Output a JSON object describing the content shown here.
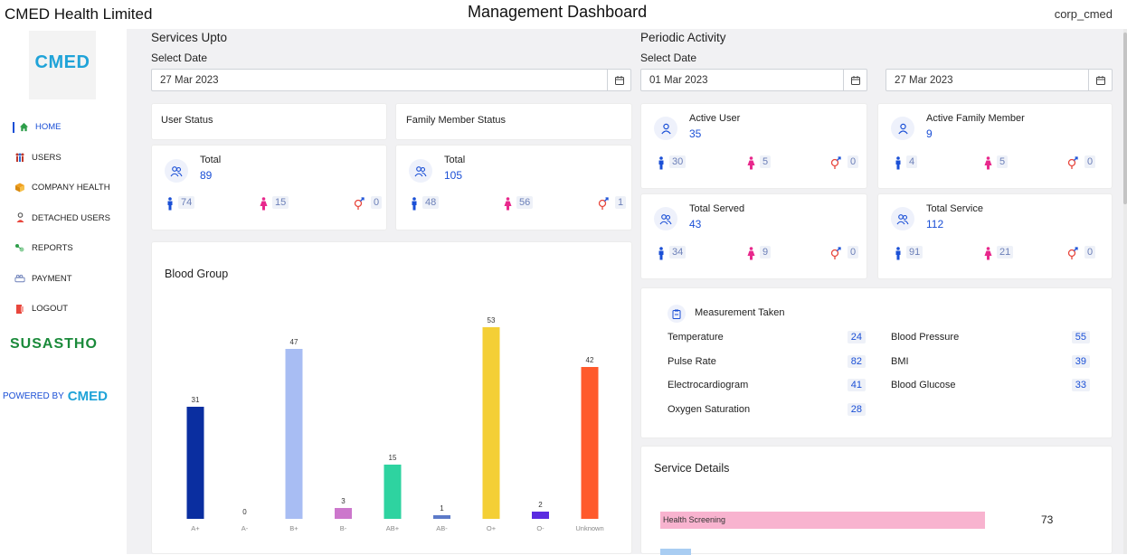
{
  "header": {
    "company": "CMED Health Limited",
    "title": "Management Dashboard",
    "user": "corp_cmed"
  },
  "sidebar": {
    "logo": "CMED",
    "items": [
      {
        "label": "HOME",
        "icon": "home-icon",
        "active": true
      },
      {
        "label": "USERS",
        "icon": "users-icon"
      },
      {
        "label": "COMPANY HEALTH",
        "icon": "company-health-icon"
      },
      {
        "label": "DETACHED USERS",
        "icon": "detached-user-icon"
      },
      {
        "label": "REPORTS",
        "icon": "reports-icon"
      },
      {
        "label": "PAYMENT",
        "icon": "payment-icon"
      },
      {
        "label": "LOGOUT",
        "icon": "logout-icon"
      }
    ],
    "susastho": "SUSASTHO",
    "powered_by": "POWERED BY",
    "powered_brand": "CMED"
  },
  "services": {
    "title": "Services Upto",
    "select_label": "Select Date",
    "date": "27 Mar 2023"
  },
  "periodic": {
    "title": "Periodic Activity",
    "select_label": "Select Date",
    "from_date": "01 Mar 2023",
    "to_date": "27 Mar 2023"
  },
  "user_status": {
    "title": "User Status",
    "label": "Total",
    "total": "89",
    "male": "74",
    "female": "15",
    "other": "0"
  },
  "family_status": {
    "title": "Family Member Status",
    "label": "Total",
    "total": "105",
    "male": "48",
    "female": "56",
    "other": "1"
  },
  "active_user": {
    "label": "Active User",
    "total": "35",
    "male": "30",
    "female": "5",
    "other": "0"
  },
  "active_family": {
    "label": "Active Family Member",
    "total": "9",
    "male": "4",
    "female": "5",
    "other": "0"
  },
  "total_served": {
    "label": "Total Served",
    "total": "43",
    "male": "34",
    "female": "9",
    "other": "0"
  },
  "total_service": {
    "label": "Total Service",
    "total": "112",
    "male": "91",
    "female": "21",
    "other": "0"
  },
  "measurement": {
    "title": "Measurement Taken",
    "left": [
      {
        "label": "Temperature",
        "value": "24"
      },
      {
        "label": "Pulse Rate",
        "value": "82"
      },
      {
        "label": "Electrocardiogram",
        "value": "41"
      },
      {
        "label": "Oxygen Saturation",
        "value": "28"
      }
    ],
    "right": [
      {
        "label": "Blood Pressure",
        "value": "55"
      },
      {
        "label": "BMI",
        "value": "39"
      },
      {
        "label": "Blood Glucose",
        "value": "33"
      }
    ]
  },
  "service_details": {
    "title": "Service Details",
    "items": [
      {
        "label": "Health Screening",
        "value": 73,
        "color": "#f8b3cf"
      }
    ]
  },
  "chart_data": {
    "type": "bar",
    "title": "Blood Group",
    "categories": [
      "A+",
      "A-",
      "B+",
      "B-",
      "AB+",
      "AB-",
      "O+",
      "O-",
      "Unknown"
    ],
    "values": [
      31,
      0,
      47,
      3,
      15,
      1,
      53,
      2,
      42
    ],
    "colors": [
      "#0a2ea0",
      "#1a4fd6",
      "#a8bdf3",
      "#cc77cc",
      "#2ed3a0",
      "#5c7ac8",
      "#f4cf36",
      "#5a2be0",
      "#ff5a2c"
    ],
    "ylim": [
      0,
      55
    ],
    "grid": false
  }
}
